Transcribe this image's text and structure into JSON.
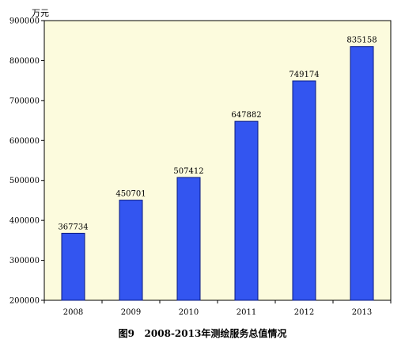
{
  "chart_data": {
    "type": "bar",
    "title": "",
    "caption": "图9   2008-2013年测绘服务总值情况",
    "ylabel": "万元",
    "xlabel": "",
    "categories": [
      "2008",
      "2009",
      "2010",
      "2011",
      "2012",
      "2013"
    ],
    "values": [
      367734,
      450701,
      507412,
      647882,
      749174,
      835158
    ],
    "data_labels": [
      "367734",
      "450701",
      "507412",
      "647882",
      "749174",
      "835158"
    ],
    "ylim": [
      200000,
      900000
    ],
    "yticks": [
      200000,
      300000,
      400000,
      500000,
      600000,
      700000,
      800000,
      900000
    ],
    "ytick_labels": [
      "200000",
      "300000",
      "400000",
      "500000",
      "600000",
      "700000",
      "800000",
      "900000"
    ],
    "grid": false,
    "legend": "none",
    "colors": {
      "bar_fill": "#3355f0",
      "bar_stroke": "#0a1a80",
      "plot_background": "#fcfbdd",
      "plot_border": "#000000"
    }
  }
}
